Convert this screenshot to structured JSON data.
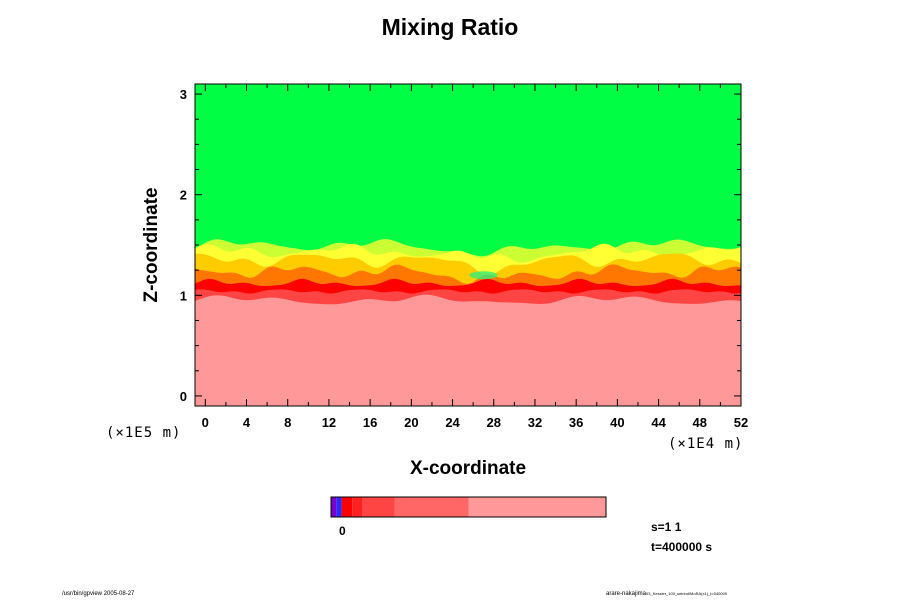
{
  "chart_data": {
    "type": "heatmap",
    "title": "Mixing Ratio",
    "xlabel": "X-coordinate",
    "ylabel": "Z-coordinate",
    "x_scale_note": "(×1E4 m)",
    "y_scale_note": "(×1E5 m)",
    "xlim": [
      -1,
      52
    ],
    "ylim": [
      -0.1,
      3.1
    ],
    "x_ticks": [
      0,
      4,
      8,
      12,
      16,
      20,
      24,
      28,
      32,
      36,
      40,
      44,
      48,
      52
    ],
    "y_ticks": [
      0,
      1,
      2,
      3
    ],
    "levels": [
      {
        "band": "below interface",
        "color": "#ff9999"
      },
      {
        "band": "interface lower",
        "color": "#ff4444"
      },
      {
        "band": "interface",
        "color": "#ff0000"
      },
      {
        "band": "mixing lower",
        "color": "#ff7700"
      },
      {
        "band": "mixing mid",
        "color": "#ffcc00"
      },
      {
        "band": "mixing upper",
        "color": "#ffff33"
      },
      {
        "band": "mixing top",
        "color": "#ccff33"
      },
      {
        "band": "above interface",
        "color": "#00ff44"
      }
    ],
    "interface_height": 1.0,
    "mixing_layer_top": 1.45,
    "colorbar": {
      "zero_label": "0",
      "segments": [
        {
          "color": "#7a00cc",
          "value_from": -0.1,
          "value_to": -0.05
        },
        {
          "color": "#2a2aff",
          "value_from": -0.05,
          "value_to": 0.0
        },
        {
          "color": "#ff0000",
          "value_from": 0.0,
          "value_to": 0.1
        },
        {
          "color": "#ff2020",
          "value_from": 0.1,
          "value_to": 0.2
        },
        {
          "color": "#ff4444",
          "value_from": 0.2,
          "value_to": 0.5
        },
        {
          "color": "#ff6666",
          "value_from": 0.5,
          "value_to": 1.2
        },
        {
          "color": "#ff9999",
          "value_from": 1.2,
          "value_to": 2.5
        }
      ]
    }
  },
  "annotations": {
    "step": "s=1 1",
    "time": "t=400000 s"
  },
  "footer": {
    "left": "/usr/bin/gpview 2005-08-27",
    "right_main": "arare-nakajima",
    "right_small": "03_Kessler_100_seirind/MoRA(x1)_t=040000"
  }
}
